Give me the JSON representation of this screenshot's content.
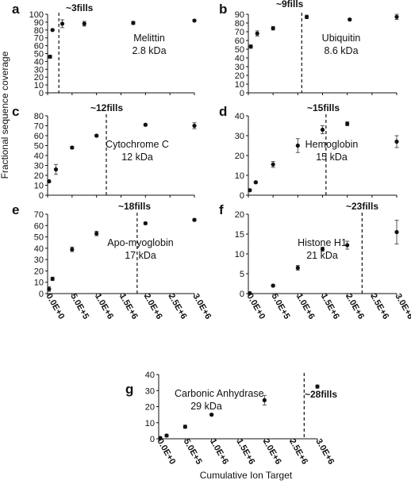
{
  "figure": {
    "ylabel": "Fractional sequence coverage",
    "xlabel": "Cumulative Ion Target"
  },
  "chart_data": [
    {
      "id": "a",
      "type": "scatter",
      "label": "a",
      "protein": "Melittin",
      "mass": "2.8 kDa",
      "fills_label": "~3fills",
      "fills_x": 230000,
      "ylim": [
        0,
        100
      ],
      "yticks": [
        0,
        10,
        20,
        30,
        40,
        50,
        60,
        70,
        80,
        90,
        100
      ],
      "xlim": [
        0,
        3000000
      ],
      "show_xticks": false,
      "points": [
        {
          "x": 50000,
          "y": 46,
          "err": 2
        },
        {
          "x": 100000,
          "y": 80,
          "err": 1
        },
        {
          "x": 300000,
          "y": 88,
          "err": 5
        },
        {
          "x": 750000,
          "y": 88,
          "err": 3
        },
        {
          "x": 1750000,
          "y": 89,
          "err": 2
        },
        {
          "x": 3000000,
          "y": 92,
          "err": 1
        }
      ]
    },
    {
      "id": "b",
      "type": "scatter",
      "label": "b",
      "protein": "Ubiquitin",
      "mass": "8.6 kDa",
      "fills_label": "~9fills",
      "fills_x": 1080000,
      "ylim": [
        0,
        90
      ],
      "yticks": [
        0,
        10,
        20,
        30,
        40,
        50,
        60,
        70,
        80,
        90
      ],
      "xlim": [
        0,
        3000000
      ],
      "show_xticks": false,
      "points": [
        {
          "x": 50000,
          "y": 53,
          "err": 2
        },
        {
          "x": 180000,
          "y": 68,
          "err": 3
        },
        {
          "x": 500000,
          "y": 74,
          "err": 2
        },
        {
          "x": 1180000,
          "y": 87,
          "err": 2
        },
        {
          "x": 2050000,
          "y": 84,
          "err": 1
        },
        {
          "x": 3000000,
          "y": 87,
          "err": 3
        }
      ]
    },
    {
      "id": "c",
      "type": "scatter",
      "label": "c",
      "protein": "Cytochrome C",
      "mass": "12 kDa",
      "fills_label": "~12fills",
      "fills_x": 1200000,
      "ylim": [
        0,
        80
      ],
      "yticks": [
        0,
        10,
        20,
        30,
        40,
        50,
        60,
        70,
        80
      ],
      "xlim": [
        0,
        3000000
      ],
      "show_xticks": false,
      "points": [
        {
          "x": 30000,
          "y": 14,
          "err": 1
        },
        {
          "x": 170000,
          "y": 26,
          "err": 5
        },
        {
          "x": 500000,
          "y": 48,
          "err": 1
        },
        {
          "x": 1000000,
          "y": 60,
          "err": 1
        },
        {
          "x": 2000000,
          "y": 71,
          "err": 1
        },
        {
          "x": 3000000,
          "y": 70,
          "err": 3
        }
      ]
    },
    {
      "id": "d",
      "type": "scatter",
      "label": "d",
      "protein": "Hemoglobin",
      "mass": "15 kDa",
      "fills_label": "~15fills",
      "fills_x": 1570000,
      "ylim": [
        0,
        40
      ],
      "yticks": [
        0,
        10,
        20,
        30,
        40
      ],
      "xlim": [
        0,
        3000000
      ],
      "show_xticks": false,
      "points": [
        {
          "x": 30000,
          "y": 2.5,
          "err": 0.5
        },
        {
          "x": 150000,
          "y": 6.5,
          "err": 0.5
        },
        {
          "x": 500000,
          "y": 15.5,
          "err": 1.5
        },
        {
          "x": 1000000,
          "y": 25,
          "err": 3.5
        },
        {
          "x": 1500000,
          "y": 33,
          "err": 2
        },
        {
          "x": 2000000,
          "y": 36,
          "err": 1
        },
        {
          "x": 3000000,
          "y": 27,
          "err": 3
        }
      ]
    },
    {
      "id": "e",
      "type": "scatter",
      "label": "e",
      "protein": "Apo-myoglobin",
      "mass": "17 kDa",
      "fills_label": "~18fills",
      "fills_x": 1830000,
      "ylim": [
        0,
        70
      ],
      "yticks": [
        0,
        10,
        20,
        30,
        40,
        50,
        60,
        70
      ],
      "xlim": [
        0,
        3000000
      ],
      "show_xticks": true,
      "xticks": [
        {
          "value": 0,
          "label": "0.0E+0"
        },
        {
          "value": 500000,
          "label": "5.0E+5"
        },
        {
          "value": 1000000,
          "label": "1.0E+6"
        },
        {
          "value": 1500000,
          "label": "1.5E+6"
        },
        {
          "value": 2000000,
          "label": "2.0E+6"
        },
        {
          "value": 2500000,
          "label": "2.5E+6"
        },
        {
          "value": 3000000,
          "label": "3.0E+6"
        }
      ],
      "points": [
        {
          "x": 30000,
          "y": 4,
          "err": 2
        },
        {
          "x": 100000,
          "y": 13,
          "err": 1.5
        },
        {
          "x": 500000,
          "y": 39,
          "err": 2
        },
        {
          "x": 1000000,
          "y": 53,
          "err": 2
        },
        {
          "x": 2000000,
          "y": 62,
          "err": 1
        },
        {
          "x": 3000000,
          "y": 65,
          "err": 1
        }
      ]
    },
    {
      "id": "f",
      "type": "scatter",
      "label": "f",
      "protein": "Histone H1",
      "mass": "21 kDa",
      "fills_label": "~23fills",
      "fills_x": 2300000,
      "ylim": [
        0,
        20
      ],
      "yticks": [
        0,
        5,
        10,
        15,
        20
      ],
      "xlim": [
        0,
        3000000
      ],
      "show_xticks": true,
      "xticks": [
        {
          "value": 0,
          "label": "0.0E+0"
        },
        {
          "value": 500000,
          "label": "5.0E+5"
        },
        {
          "value": 1000000,
          "label": "1.0E+6"
        },
        {
          "value": 1500000,
          "label": "1.5E+6"
        },
        {
          "value": 2000000,
          "label": "2.0E+6"
        },
        {
          "value": 2500000,
          "label": "2.5E+6"
        },
        {
          "value": 3000000,
          "label": "3.0E+6"
        }
      ],
      "points": [
        {
          "x": 30000,
          "y": 0.1,
          "err": 0.1
        },
        {
          "x": 500000,
          "y": 2,
          "err": 0.3
        },
        {
          "x": 1000000,
          "y": 6.5,
          "err": 0.6
        },
        {
          "x": 1500000,
          "y": 11.2,
          "err": 0.5
        },
        {
          "x": 2000000,
          "y": 12.2,
          "err": 1
        },
        {
          "x": 3000000,
          "y": 15.5,
          "err": 3
        }
      ]
    },
    {
      "id": "g",
      "type": "scatter",
      "label": "g",
      "protein": "Carbonic Anhydrase",
      "mass": "29 kDa",
      "fills_label": "~28fills",
      "fills_x": 2750000,
      "ylim": [
        0,
        40
      ],
      "yticks": [
        0,
        10,
        20,
        30,
        40
      ],
      "xlim": [
        0,
        3000000
      ],
      "show_xticks": true,
      "xticks": [
        {
          "value": 0,
          "label": "0.0E+0"
        },
        {
          "value": 500000,
          "label": "5.0E+5"
        },
        {
          "value": 1000000,
          "label": "1.0E+6"
        },
        {
          "value": 1500000,
          "label": "1.5E+6"
        },
        {
          "value": 2000000,
          "label": "2.0E+6"
        },
        {
          "value": 2500000,
          "label": "2.5E+6"
        },
        {
          "value": 3000000,
          "label": "3.0E+6"
        }
      ],
      "points": [
        {
          "x": 30000,
          "y": 0.5,
          "err": 0.5
        },
        {
          "x": 150000,
          "y": 2,
          "err": 0.8
        },
        {
          "x": 500000,
          "y": 7.5,
          "err": 1
        },
        {
          "x": 1000000,
          "y": 15,
          "err": 0.5
        },
        {
          "x": 2000000,
          "y": 24,
          "err": 3
        },
        {
          "x": 3000000,
          "y": 32.5,
          "err": 1
        }
      ]
    }
  ]
}
